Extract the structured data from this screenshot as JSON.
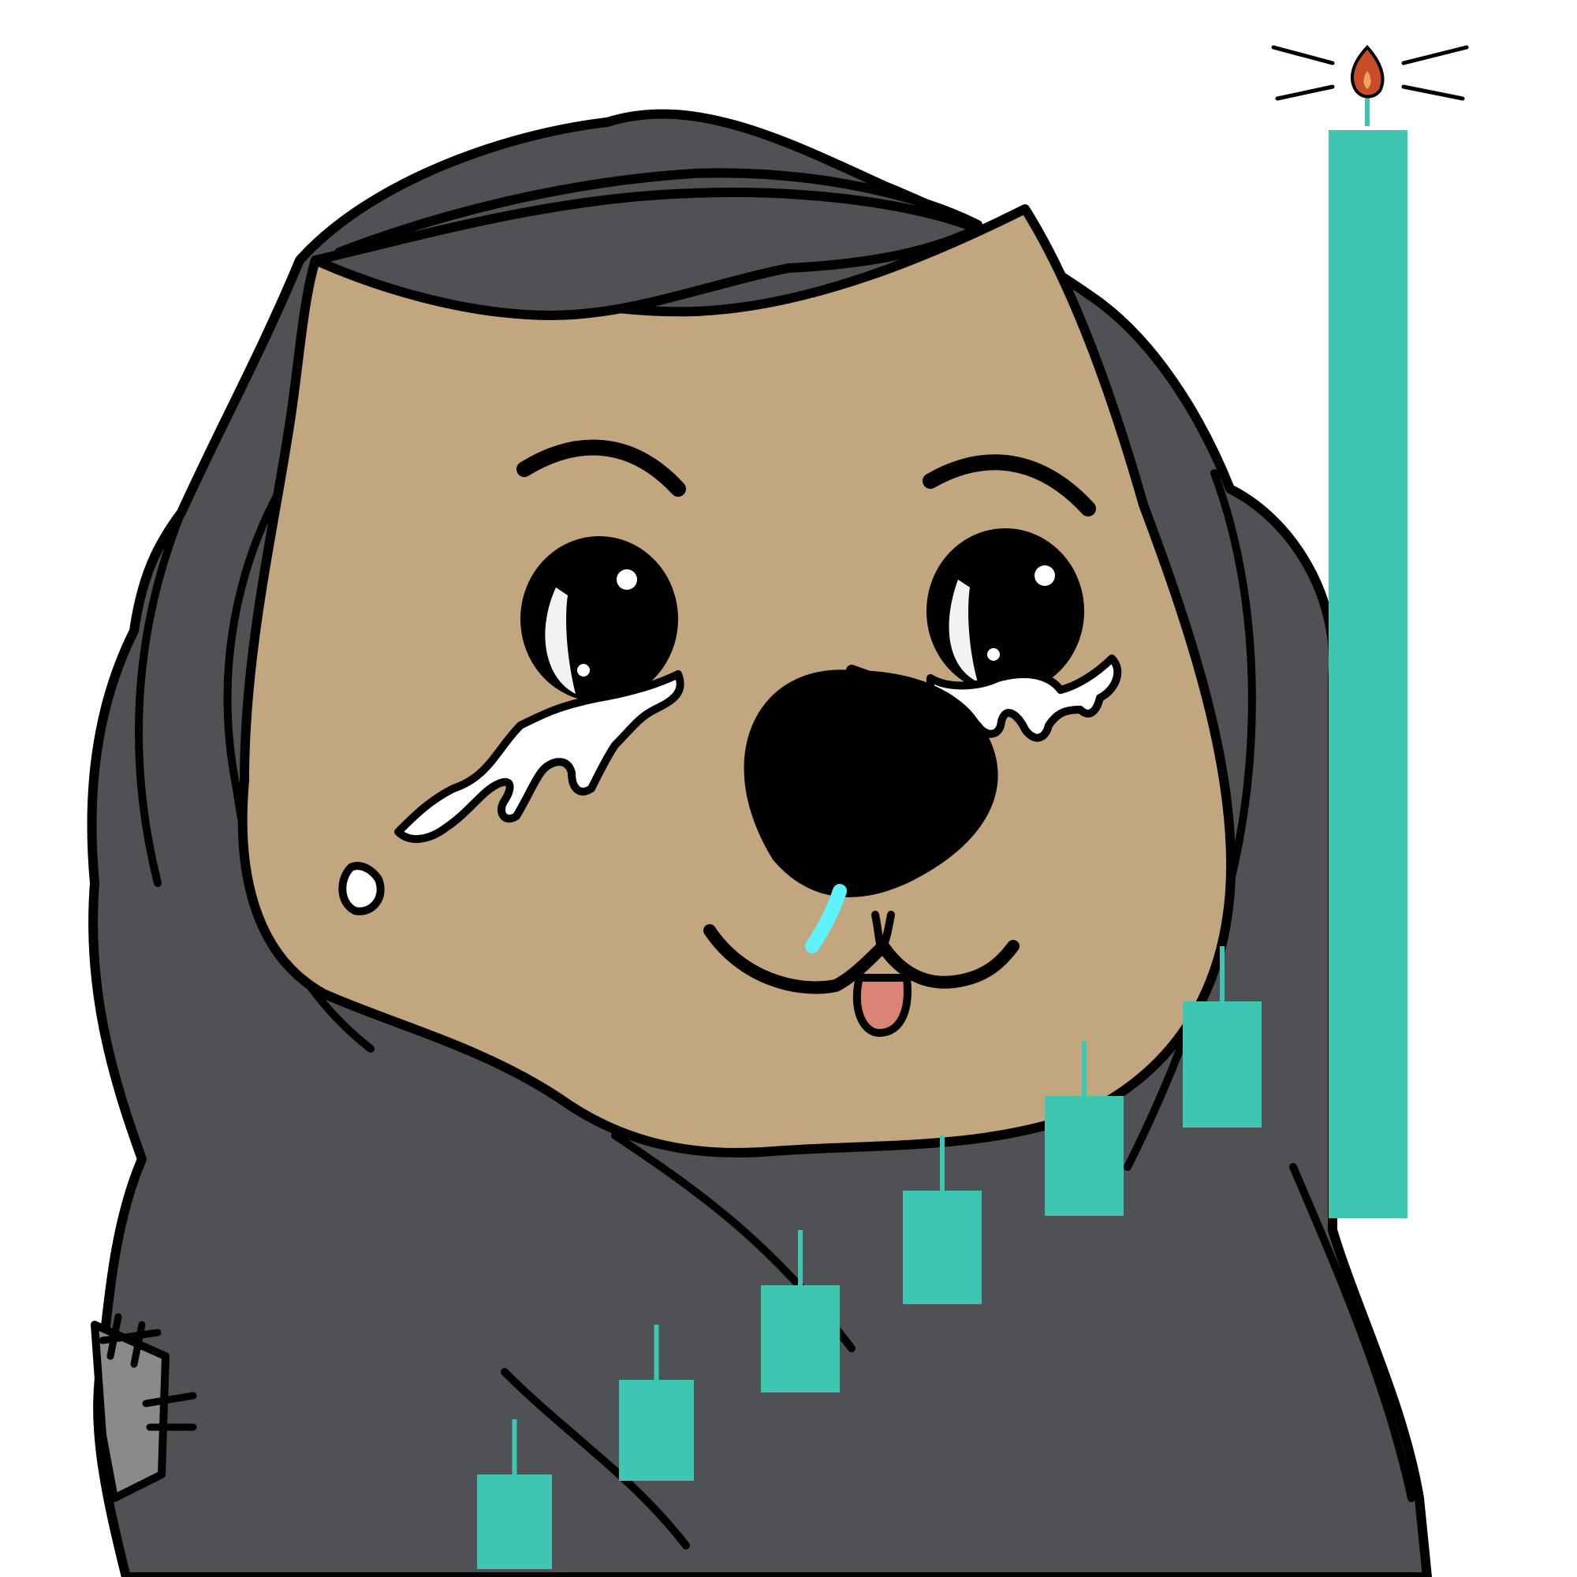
{
  "scene": {
    "subject": "crying-wombat-in-hoodie",
    "colors": {
      "background": "#ffffff",
      "hoodie": "#505155",
      "outline": "#000000",
      "fur": "#c2a67f",
      "tears": "#ffffff",
      "snot": "#5ef2ff",
      "tongue": "#d98475",
      "patch": "#8a8a8a",
      "candles": "#3ec6b3",
      "flame_outer": "#c94c2a",
      "flame_inner": "#f0a45a"
    },
    "icons": {
      "candlestick_chart": "rising-green-candles-icon",
      "fuse_flame": "flame-icon"
    }
  },
  "chart_data": {
    "type": "candlestick",
    "trend": "rising",
    "candles": [
      {
        "index": 1,
        "direction": "up",
        "relative_close": 1
      },
      {
        "index": 2,
        "direction": "up",
        "relative_close": 2
      },
      {
        "index": 3,
        "direction": "up",
        "relative_close": 3
      },
      {
        "index": 4,
        "direction": "up",
        "relative_close": 4
      },
      {
        "index": 5,
        "direction": "up",
        "relative_close": 5
      },
      {
        "index": 6,
        "direction": "up",
        "relative_close": 6
      },
      {
        "index": 7,
        "direction": "up",
        "relative_close": 10
      }
    ],
    "color": "#3ec6b3",
    "title": "",
    "xlabel": "",
    "ylabel": ""
  }
}
